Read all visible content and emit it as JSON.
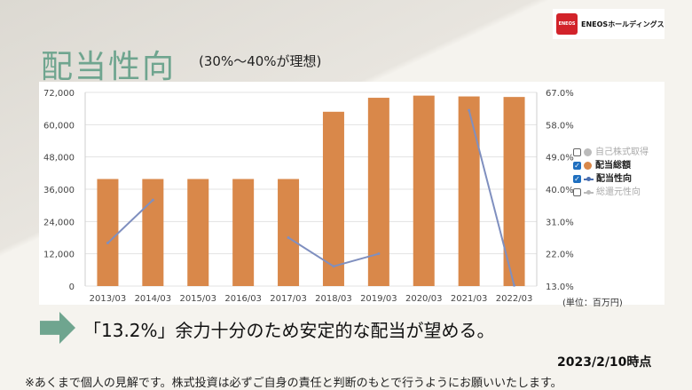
{
  "slide": {
    "title": "配当性向",
    "subtitle": "(30%〜40%が理想)",
    "logo_text": "ENEOSホールディングス",
    "logo_mark": "ENEOS",
    "message": "「13.2%」余力十分のため安定的な配当が望める。",
    "date": "2023/2/10時点",
    "disclaimer": "※あくまで個人の見解です。株式投資は必ずご自身の責任と判断のもとで行うようにお願いいたします。"
  },
  "chart_data": {
    "type": "bar",
    "categories": [
      "2013/03",
      "2014/03",
      "2015/03",
      "2016/03",
      "2017/03",
      "2018/03",
      "2019/03",
      "2020/03",
      "2021/03",
      "2022/03"
    ],
    "series": [
      {
        "name": "配当総額",
        "type": "bar",
        "axis": "left",
        "color": "#d9884a",
        "values": [
          39800,
          39800,
          39800,
          39800,
          39800,
          64800,
          70000,
          70800,
          70500,
          70300
        ]
      },
      {
        "name": "配当性向",
        "type": "line",
        "axis": "right",
        "color": "#7f8fbf",
        "values": [
          25.0,
          37.0,
          null,
          null,
          26.5,
          18.5,
          22.0,
          null,
          62.0,
          13.2
        ]
      }
    ],
    "y_left": {
      "min": 0,
      "max": 72000,
      "ticks": [
        "0",
        "12,000",
        "24,000",
        "36,000",
        "48,000",
        "60,000",
        "72,000"
      ]
    },
    "y_right": {
      "min": 13.0,
      "max": 67.0,
      "ticks": [
        "13.0%",
        "22.0%",
        "31.0%",
        "40.0%",
        "49.0%",
        "58.0%",
        "67.0%"
      ]
    },
    "grid": true,
    "legend": {
      "placement": "right",
      "items": [
        {
          "label": "自己株式取得",
          "checked": false,
          "color": "#bbbbbb",
          "swatch": "dot"
        },
        {
          "label": "配当総額",
          "checked": true,
          "color": "#d9884a",
          "swatch": "dot"
        },
        {
          "label": "配当性向",
          "checked": true,
          "color": "#4a6fb0",
          "swatch": "line"
        },
        {
          "label": "総還元性向",
          "checked": false,
          "color": "#bbbbbb",
          "swatch": "line"
        }
      ]
    },
    "unit_label": "(単位：百万円)"
  }
}
